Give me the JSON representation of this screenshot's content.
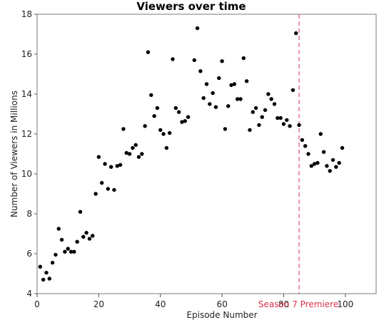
{
  "chart_data": {
    "type": "scatter",
    "title": "Viewers over time",
    "xlabel": "Episode Number",
    "ylabel": "Number of Viewers in Millions",
    "xlim": [
      0,
      110
    ],
    "ylim": [
      4,
      18
    ],
    "xticks": [
      0,
      20,
      40,
      60,
      80,
      100
    ],
    "yticks": [
      4,
      6,
      8,
      10,
      12,
      14,
      16,
      18
    ],
    "grid": false,
    "marker_color": "#000000",
    "reference_line": {
      "x": 85,
      "color": "#d9314a",
      "style": "dashed",
      "label": "Season 7 Premiere"
    },
    "points": [
      [
        1,
        5.35
      ],
      [
        2,
        4.7
      ],
      [
        3,
        5.05
      ],
      [
        4,
        4.75
      ],
      [
        5,
        5.55
      ],
      [
        6,
        5.95
      ],
      [
        7,
        7.25
      ],
      [
        8,
        6.7
      ],
      [
        9,
        6.1
      ],
      [
        10,
        6.25
      ],
      [
        11,
        6.1
      ],
      [
        12,
        6.1
      ],
      [
        13,
        6.6
      ],
      [
        14,
        8.1
      ],
      [
        15,
        6.85
      ],
      [
        16,
        7.05
      ],
      [
        17,
        6.75
      ],
      [
        18,
        6.9
      ],
      [
        19,
        9.0
      ],
      [
        20,
        10.85
      ],
      [
        21,
        9.55
      ],
      [
        22,
        10.5
      ],
      [
        23,
        9.25
      ],
      [
        24,
        10.35
      ],
      [
        25,
        9.2
      ],
      [
        26,
        10.4
      ],
      [
        27,
        10.45
      ],
      [
        28,
        12.25
      ],
      [
        29,
        11.05
      ],
      [
        30,
        11.0
      ],
      [
        31,
        11.3
      ],
      [
        32,
        11.45
      ],
      [
        33,
        10.85
      ],
      [
        34,
        11.0
      ],
      [
        35,
        12.4
      ],
      [
        36,
        16.1
      ],
      [
        37,
        13.95
      ],
      [
        38,
        12.9
      ],
      [
        39,
        13.3
      ],
      [
        40,
        12.2
      ],
      [
        41,
        12.0
      ],
      [
        42,
        11.3
      ],
      [
        43,
        12.05
      ],
      [
        44,
        15.75
      ],
      [
        45,
        13.3
      ],
      [
        46,
        13.1
      ],
      [
        47,
        12.6
      ],
      [
        48,
        12.65
      ],
      [
        49,
        12.85
      ],
      [
        51,
        15.7
      ],
      [
        52,
        17.3
      ],
      [
        53,
        15.15
      ],
      [
        54,
        13.8
      ],
      [
        55,
        14.5
      ],
      [
        56,
        13.5
      ],
      [
        57,
        14.05
      ],
      [
        58,
        13.35
      ],
      [
        59,
        14.8
      ],
      [
        60,
        15.65
      ],
      [
        61,
        12.25
      ],
      [
        62,
        13.4
      ],
      [
        63,
        14.45
      ],
      [
        64,
        14.5
      ],
      [
        65,
        13.75
      ],
      [
        66,
        13.75
      ],
      [
        67,
        15.8
      ],
      [
        68,
        14.65
      ],
      [
        69,
        12.2
      ],
      [
        70,
        13.1
      ],
      [
        71,
        13.3
      ],
      [
        72,
        12.45
      ],
      [
        73,
        12.85
      ],
      [
        74,
        13.2
      ],
      [
        75,
        14.0
      ],
      [
        76,
        13.75
      ],
      [
        77,
        13.5
      ],
      [
        78,
        12.8
      ],
      [
        79,
        12.8
      ],
      [
        80,
        12.5
      ],
      [
        81,
        12.7
      ],
      [
        82,
        12.4
      ],
      [
        83,
        14.2
      ],
      [
        84,
        17.05
      ],
      [
        85,
        12.45
      ],
      [
        86,
        11.7
      ],
      [
        87,
        11.4
      ],
      [
        88,
        11.0
      ],
      [
        89,
        10.4
      ],
      [
        90,
        10.5
      ],
      [
        91,
        10.55
      ],
      [
        92,
        12.0
      ],
      [
        93,
        11.1
      ],
      [
        94,
        10.4
      ],
      [
        95,
        10.15
      ],
      [
        96,
        10.7
      ],
      [
        97,
        10.35
      ],
      [
        98,
        10.55
      ],
      [
        99,
        11.3
      ]
    ]
  }
}
